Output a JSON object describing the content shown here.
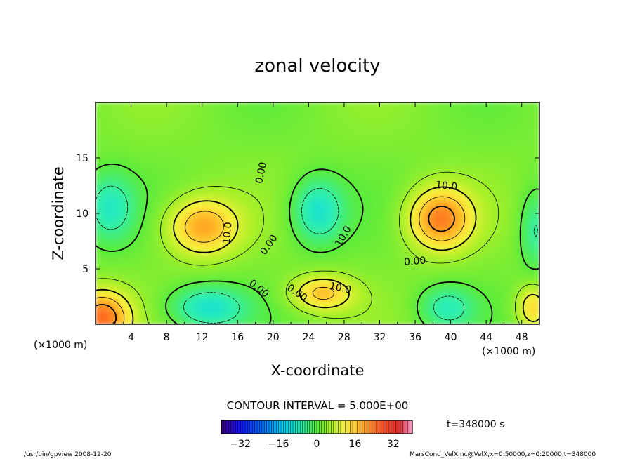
{
  "chart_data": {
    "type": "heatmap",
    "title": "zonal velocity",
    "xlabel": "X-coordinate",
    "ylabel": "Z-coordinate",
    "x_unit": "(×1000 m)",
    "y_unit": "(×1000 m)",
    "xlim": [
      0,
      50
    ],
    "ylim": [
      0,
      20
    ],
    "x_ticks": [
      "4",
      "8",
      "12",
      "16",
      "20",
      "24",
      "28",
      "32",
      "36",
      "40",
      "44",
      "48"
    ],
    "y_ticks": [
      "5",
      "10",
      "15"
    ],
    "contour_interval": "CONTOUR INTERVAL = 5.000E+00",
    "contour_labels": [
      "0.00",
      "10.0",
      "0.00",
      "0.00",
      "10.0",
      "10.0",
      "0.00",
      "10.0",
      "0.00"
    ],
    "colorbar": {
      "min": -40,
      "max": 40,
      "ticks": [
        "−32",
        "−16",
        "0",
        "16",
        "32"
      ]
    },
    "time_label": "t=348000 s",
    "grid": false,
    "features": [
      {
        "x": 0.6,
        "z": 0.6,
        "u": 22
      },
      {
        "x": 12.0,
        "z": 8.8,
        "u": 17
      },
      {
        "x": 38.8,
        "z": 9.5,
        "u": 20
      },
      {
        "x": 25.5,
        "z": 2.8,
        "u": 14
      },
      {
        "x": 49.2,
        "z": 1.5,
        "u": 12
      },
      {
        "x": 25.0,
        "z": 10.2,
        "u": -12
      },
      {
        "x": 12.5,
        "z": 1.5,
        "u": -12
      },
      {
        "x": 1.5,
        "z": 10.5,
        "u": -10
      },
      {
        "x": 39.5,
        "z": 1.5,
        "u": -9
      },
      {
        "x": 49.5,
        "z": 8.5,
        "u": -8
      }
    ]
  },
  "footer": {
    "left": "/usr/bin/gpview   2008-12-20",
    "right": "MarsCond_VelX.nc@VelX,x=0:50000,z=0:20000,t=348000"
  },
  "colors": {
    "frame": "#000000",
    "background": "#ffffff"
  }
}
